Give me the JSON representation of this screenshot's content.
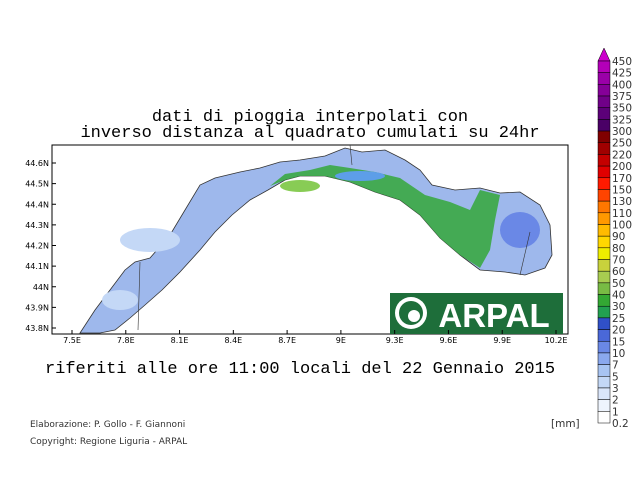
{
  "title": [
    "dati di pioggia interpolati con",
    "inverso distanza al quadrato cumulati su 24hr"
  ],
  "subtitle": "riferiti alle ore 11:00 locali del 22 Gennaio 2015",
  "x_axis_labels": [
    "7.5E",
    "7.8E",
    "8.1E",
    "8.4E",
    "8.7E",
    "9E",
    "9.3E",
    "9.6E",
    "9.9E",
    "10.2E"
  ],
  "y_axis_labels": [
    "44.6N",
    "44.5N",
    "44.4N",
    "44.3N",
    "44.2N",
    "44.1N",
    "44N",
    "43.9N",
    "43.8N"
  ],
  "legend": {
    "labels": [
      "450",
      "425",
      "400",
      "375",
      "350",
      "325",
      "300",
      "250",
      "220",
      "200",
      "170",
      "150",
      "130",
      "110",
      "100",
      "90",
      "80",
      "70",
      "60",
      "50",
      "40",
      "30",
      "25",
      "20",
      "15",
      "10",
      "7",
      "5",
      "3",
      "2",
      "1",
      "0.2"
    ],
    "colors": [
      "#cc00cc",
      "#b300b8",
      "#9a00a8",
      "#850098",
      "#700088",
      "#5c0078",
      "#4a0066",
      "#800000",
      "#a00000",
      "#c40000",
      "#e00000",
      "#ff1a00",
      "#ff4400",
      "#ff7700",
      "#ff9900",
      "#ffbb00",
      "#ffd700",
      "#eeee00",
      "#c8d23c",
      "#a8cc50",
      "#78bb44",
      "#33a833",
      "#22a050",
      "#3050c8",
      "#4a68d8",
      "#6a88e6",
      "#8aa8ee",
      "#a8c4f2",
      "#c4d8f6",
      "#dae6fa",
      "#eef4fd",
      "#ffffff"
    ],
    "unit": "[mm]"
  },
  "logo": "ARPAL",
  "credits": [
    "Elaborazione: P. Gollo - F. Giannoni",
    "Copyright: Regione Liguria - ARPAL"
  ]
}
